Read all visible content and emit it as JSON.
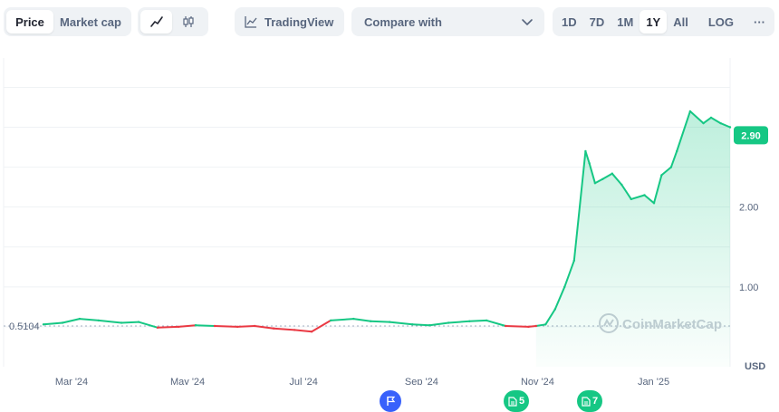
{
  "toolbar": {
    "type_tabs": [
      {
        "label": "Price",
        "active": true
      },
      {
        "label": "Market cap",
        "active": false
      }
    ],
    "chart_styles": [
      {
        "icon": "line-chart-icon",
        "active": true
      },
      {
        "icon": "candlestick-icon",
        "active": false
      }
    ],
    "tradingview_label": "TradingView",
    "compare_label": "Compare with",
    "ranges": [
      "1D",
      "7D",
      "1M",
      "1Y",
      "All"
    ],
    "active_range": "1Y",
    "log_label": "LOG",
    "more_label": "···"
  },
  "chart_data": {
    "type": "area",
    "title": "",
    "xlabel": "",
    "ylabel": "",
    "currency": "USD",
    "ylim": [
      0,
      3.8
    ],
    "yticks": [
      {
        "label": "1.00",
        "value": 1.0
      },
      {
        "label": "2.00",
        "value": 2.0
      }
    ],
    "xticks": [
      "Mar '24",
      "May '24",
      "Jul '24",
      "Sep '24",
      "Nov '24",
      "Jan '25"
    ],
    "x": [
      "2024-02-20",
      "2024-03-01",
      "2024-03-10",
      "2024-03-20",
      "2024-04-01",
      "2024-04-10",
      "2024-04-20",
      "2024-05-01",
      "2024-05-10",
      "2024-05-20",
      "2024-06-01",
      "2024-06-10",
      "2024-06-20",
      "2024-07-01",
      "2024-07-10",
      "2024-07-20",
      "2024-08-01",
      "2024-08-10",
      "2024-08-20",
      "2024-09-01",
      "2024-09-10",
      "2024-09-20",
      "2024-10-01",
      "2024-10-10",
      "2024-10-20",
      "2024-11-01",
      "2024-11-05",
      "2024-11-10",
      "2024-11-15",
      "2024-11-20",
      "2024-11-25",
      "2024-12-01",
      "2024-12-03",
      "2024-12-06",
      "2024-12-10",
      "2024-12-15",
      "2024-12-20",
      "2024-12-25",
      "2025-01-01",
      "2025-01-06",
      "2025-01-10",
      "2025-01-15",
      "2025-01-18",
      "2025-01-25",
      "2025-02-01",
      "2025-02-05",
      "2025-02-10",
      "2025-02-15"
    ],
    "values": [
      0.53,
      0.55,
      0.6,
      0.58,
      0.55,
      0.56,
      0.49,
      0.5,
      0.52,
      0.51,
      0.5,
      0.51,
      0.48,
      0.46,
      0.44,
      0.58,
      0.6,
      0.57,
      0.56,
      0.53,
      0.52,
      0.55,
      0.57,
      0.58,
      0.51,
      0.5,
      0.51,
      0.53,
      0.72,
      1.0,
      1.33,
      2.7,
      2.55,
      2.3,
      2.35,
      2.42,
      2.28,
      2.1,
      2.15,
      2.05,
      2.4,
      2.5,
      2.7,
      3.2,
      3.05,
      3.12,
      3.05,
      3.0
    ],
    "baseline": {
      "label": "0.5104",
      "value": 0.5104
    },
    "current_price": {
      "label": "2.90",
      "value": 2.9
    },
    "watermark": "CoinMarketCap",
    "colors": {
      "up": "#16c784",
      "down": "#ea3943",
      "grid": "#eff2f5",
      "axis": "#58667e"
    }
  },
  "markers": [
    {
      "kind": "event",
      "icon": "flag-icon",
      "label": ""
    },
    {
      "kind": "news",
      "icon": "document-icon",
      "label": "5"
    },
    {
      "kind": "news",
      "icon": "document-icon",
      "label": "7"
    }
  ]
}
